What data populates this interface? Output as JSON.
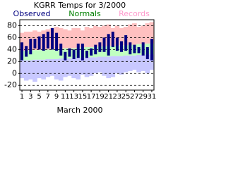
{
  "chart_data": {
    "type": "temperature",
    "title": "KGRR Temps for 3/2000",
    "x_label": "March 2000",
    "x": [
      1,
      2,
      3,
      4,
      5,
      6,
      7,
      8,
      9,
      10,
      11,
      12,
      13,
      14,
      15,
      16,
      17,
      18,
      19,
      20,
      21,
      22,
      23,
      24,
      25,
      26,
      27,
      28,
      29,
      30,
      31
    ],
    "xlim": [
      0.5,
      31.5
    ],
    "xticks": [
      1,
      3,
      5,
      7,
      9,
      11,
      13,
      15,
      17,
      19,
      21,
      23,
      25,
      27,
      29,
      31
    ],
    "ylim": [
      -28,
      90
    ],
    "yticks": [
      -20,
      0,
      20,
      40,
      60,
      80
    ],
    "grid": true,
    "series": [
      {
        "name": "Records",
        "color": "#ffc0c0",
        "low_color": "#c8c8ff",
        "label_color": "#ff99cc",
        "highs": [
          68,
          70,
          70,
          72,
          70,
          72,
          74,
          76,
          78,
          76,
          74,
          72,
          76,
          76,
          72,
          78,
          76,
          80,
          78,
          80,
          82,
          76,
          80,
          76,
          78,
          82,
          84,
          78,
          80,
          84,
          86
        ],
        "lows": [
          -8,
          -12,
          -10,
          -14,
          -8,
          -10,
          -6,
          -4,
          -10,
          -12,
          -6,
          -4,
          -8,
          -10,
          -2,
          -6,
          -4,
          0,
          2,
          -4,
          -8,
          -6,
          0,
          -2,
          2,
          4,
          6,
          2,
          4,
          0,
          6
        ]
      },
      {
        "name": "Normals",
        "color": "#c0ffc0",
        "label_color": "#008000",
        "highs": [
          38,
          38,
          39,
          39,
          39,
          40,
          40,
          40,
          41,
          41,
          42,
          42,
          42,
          43,
          43,
          44,
          44,
          44,
          45,
          45,
          46,
          46,
          46,
          47,
          47,
          48,
          48,
          49,
          49,
          50,
          50
        ],
        "lows": [
          22,
          22,
          22,
          23,
          23,
          23,
          24,
          24,
          24,
          25,
          25,
          25,
          26,
          26,
          26,
          27,
          27,
          27,
          28,
          28,
          28,
          29,
          29,
          29,
          30,
          30,
          30,
          31,
          31,
          32,
          32
        ]
      },
      {
        "name": "Observed",
        "color": "#000080",
        "label_color": "#000080",
        "highs": [
          52,
          46,
          58,
          58,
          62,
          66,
          70,
          76,
          68,
          50,
          36,
          42,
          40,
          50,
          50,
          38,
          42,
          48,
          52,
          60,
          66,
          70,
          60,
          54,
          64,
          52,
          48,
          44,
          52,
          44,
          58
        ],
        "lows": [
          22,
          28,
          32,
          42,
          40,
          38,
          42,
          40,
          38,
          30,
          22,
          28,
          24,
          26,
          22,
          26,
          30,
          32,
          36,
          36,
          30,
          44,
          38,
          36,
          38,
          32,
          34,
          34,
          30,
          24,
          22
        ]
      }
    ]
  }
}
